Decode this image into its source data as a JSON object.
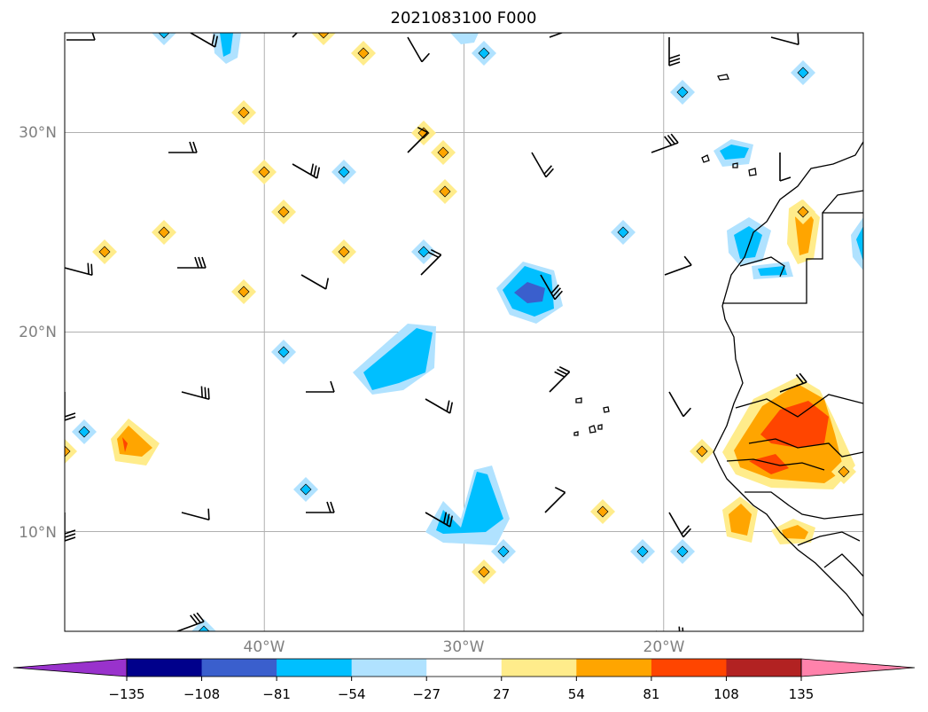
{
  "title": "2021083100 F000",
  "map": {
    "lon_range": [
      -50,
      -10
    ],
    "lat_range": [
      5,
      35
    ],
    "lat_ticks": [
      {
        "lat": 30,
        "label": "30°N"
      },
      {
        "lat": 20,
        "label": "20°N"
      },
      {
        "lat": 10,
        "label": "10°N"
      }
    ],
    "lon_ticks": [
      {
        "lon": -40,
        "label": "40°W"
      },
      {
        "lon": -30,
        "label": "30°W"
      },
      {
        "lon": -20,
        "label": "20°W"
      }
    ]
  },
  "colorbar": {
    "colors": [
      "#9932cc",
      "#00008b",
      "#3a5fcd",
      "#00bfff",
      "#b0e2ff",
      "#ffffff",
      "#ffec8b",
      "#ffa500",
      "#ff4500",
      "#b22222",
      "#ff82ab"
    ],
    "ticks": [
      "−135",
      "−108",
      "−81",
      "−54",
      "−27",
      "27",
      "54",
      "81",
      "108",
      "135"
    ]
  },
  "contour_colors": {
    "neg1": "#b0e2ff",
    "neg2": "#00bfff",
    "neg3": "#3a5fcd",
    "pos1": "#ffec8b",
    "pos2": "#ffa500",
    "pos3": "#ff4500"
  }
}
